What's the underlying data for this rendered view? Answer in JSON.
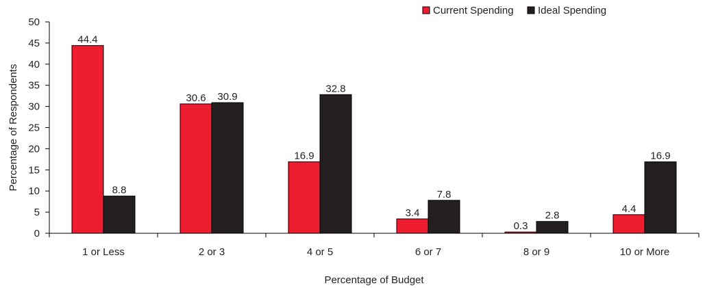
{
  "chart_data": {
    "type": "bar",
    "title": "",
    "xlabel": "Percentage of Budget",
    "ylabel": "Percentage of Respondents",
    "ylim": [
      0,
      50
    ],
    "yticks": [
      0,
      5,
      10,
      15,
      20,
      25,
      30,
      35,
      40,
      45,
      50
    ],
    "categories": [
      "1 or Less",
      "2 or 3",
      "4 or 5",
      "6 or 7",
      "8 or 9",
      "10 or More"
    ],
    "series": [
      {
        "name": "Current Spending",
        "color": "#ed1c2e",
        "values": [
          44.4,
          30.6,
          16.9,
          3.4,
          0.3,
          4.4
        ]
      },
      {
        "name": "Ideal Spending",
        "color": "#231f20",
        "values": [
          8.8,
          30.9,
          32.8,
          7.8,
          2.8,
          16.9
        ]
      }
    ],
    "legend_position": "top-right",
    "grid": false
  }
}
